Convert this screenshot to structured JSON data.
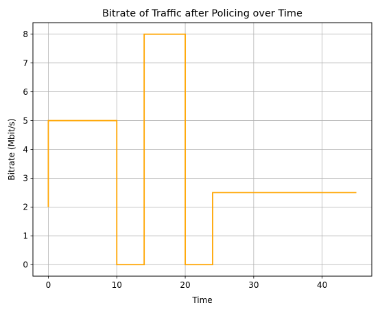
{
  "chart_data": {
    "type": "line",
    "step": true,
    "title": "Bitrate of Traffic after Policing over Time",
    "xlabel": "Time",
    "ylabel": "Bitrate (Mbit/s)",
    "xlim": [
      -2.25,
      47.25
    ],
    "ylim": [
      -0.4,
      8.4
    ],
    "xticks": [
      0,
      10,
      20,
      30,
      40
    ],
    "yticks": [
      0,
      1,
      2,
      3,
      4,
      5,
      6,
      7,
      8
    ],
    "grid": true,
    "series": [
      {
        "color": "#ffa500",
        "points": [
          [
            0,
            2
          ],
          [
            0,
            5
          ],
          [
            10,
            5
          ],
          [
            10,
            0
          ],
          [
            14,
            0
          ],
          [
            14,
            8
          ],
          [
            20,
            8
          ],
          [
            20,
            0
          ],
          [
            24,
            0
          ],
          [
            24,
            2.5
          ],
          [
            45,
            2.5
          ]
        ]
      }
    ]
  }
}
